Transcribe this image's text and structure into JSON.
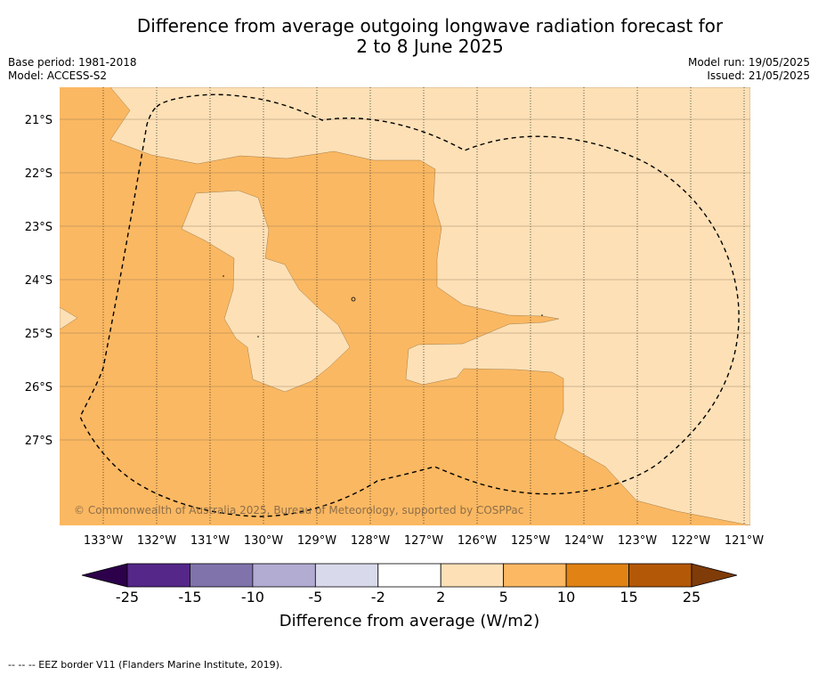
{
  "title": {
    "line1": "Difference from average outgoing longwave radiation forecast for",
    "line2": "2 to 8 June 2025"
  },
  "meta": {
    "base_period": "Base period: 1981-2018",
    "model": "Model: ACCESS-S2",
    "model_run": "Model run: 19/05/2025",
    "issued": "Issued: 21/05/2025"
  },
  "map": {
    "latitude_labels": [
      "21°S",
      "22°S",
      "23°S",
      "24°S",
      "25°S",
      "26°S",
      "27°S"
    ],
    "longitude_labels": [
      "133°W",
      "132°W",
      "131°W",
      "130°W",
      "129°W",
      "128°W",
      "127°W",
      "126°W",
      "125°W",
      "124°W",
      "123°W",
      "122°W",
      "121°W"
    ],
    "copyright": "© Commonwealth of Australia 2025, Bureau of Meteorology, supported by COSPPac",
    "colors": {
      "band_2_5": "#fde0b6",
      "band_5_10": "#fbb862",
      "eez_line": "#000000"
    }
  },
  "colorbar": {
    "ticks": [
      "-25",
      "-15",
      "-10",
      "-5",
      "-2",
      "2",
      "5",
      "10",
      "15",
      "25"
    ],
    "bins": [
      {
        "from": "-25",
        "to": "-15",
        "color": "#542788"
      },
      {
        "from": "-15",
        "to": "-10",
        "color": "#8073ac"
      },
      {
        "from": "-10",
        "to": "-5",
        "color": "#b2abd2"
      },
      {
        "from": "-5",
        "to": "-2",
        "color": "#d8daeb"
      },
      {
        "from": "-2",
        "to": "2",
        "color": "#ffffff"
      },
      {
        "from": "2",
        "to": "5",
        "color": "#fee0b6"
      },
      {
        "from": "5",
        "to": "10",
        "color": "#fdb863"
      },
      {
        "from": "10",
        "to": "15",
        "color": "#e08214"
      },
      {
        "from": "15",
        "to": "25",
        "color": "#b35806"
      }
    ],
    "under_color": "#2d004b",
    "over_color": "#7f3b08",
    "label": "Difference from average (W/m2)"
  },
  "footnote": "--  --  -- EEZ border V11 (Flanders Marine Institute, 2019)."
}
